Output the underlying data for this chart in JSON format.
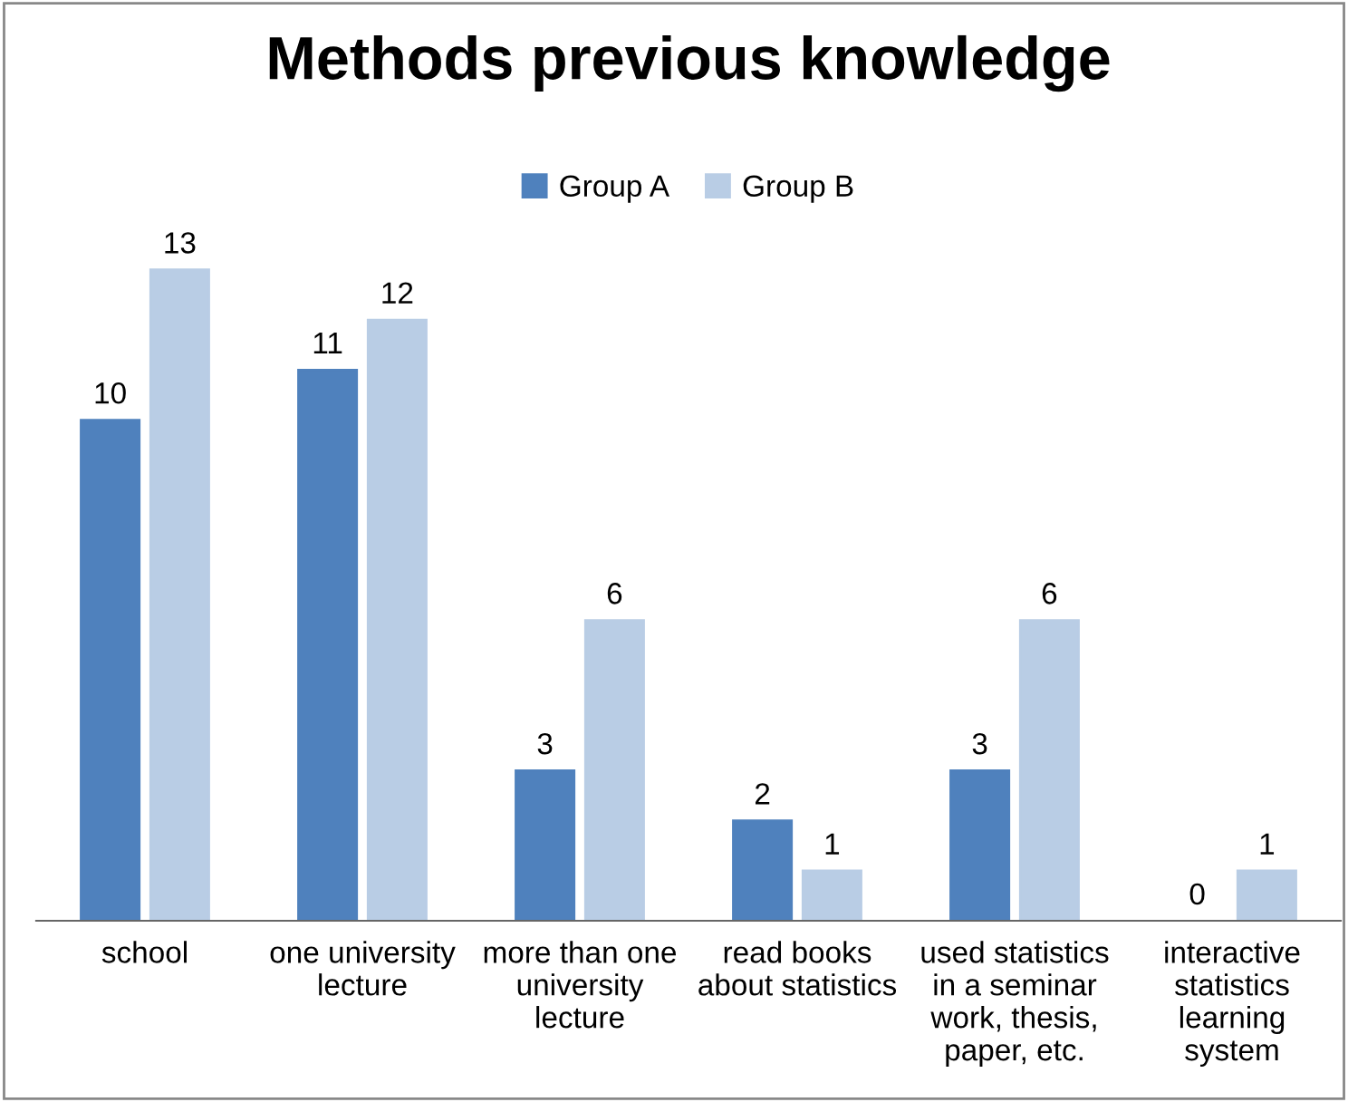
{
  "chart_data": {
    "type": "bar",
    "title": "Methods previous knowledge",
    "categories": [
      "school",
      "one university\nlecture",
      "more than one\nuniversity\nlecture",
      "read books\nabout statistics",
      "used statistics\nin a seminar\nwork, thesis,\npaper, etc.",
      "interactive\nstatistics\nlearning\nsystem"
    ],
    "series": [
      {
        "name": "Group A",
        "color": "#4f81bd",
        "values": [
          10,
          11,
          3,
          2,
          3,
          0
        ]
      },
      {
        "name": "Group B",
        "color": "#b9cde5",
        "values": [
          13,
          12,
          6,
          1,
          6,
          1
        ]
      }
    ],
    "data_labels": true,
    "legend": "top"
  }
}
